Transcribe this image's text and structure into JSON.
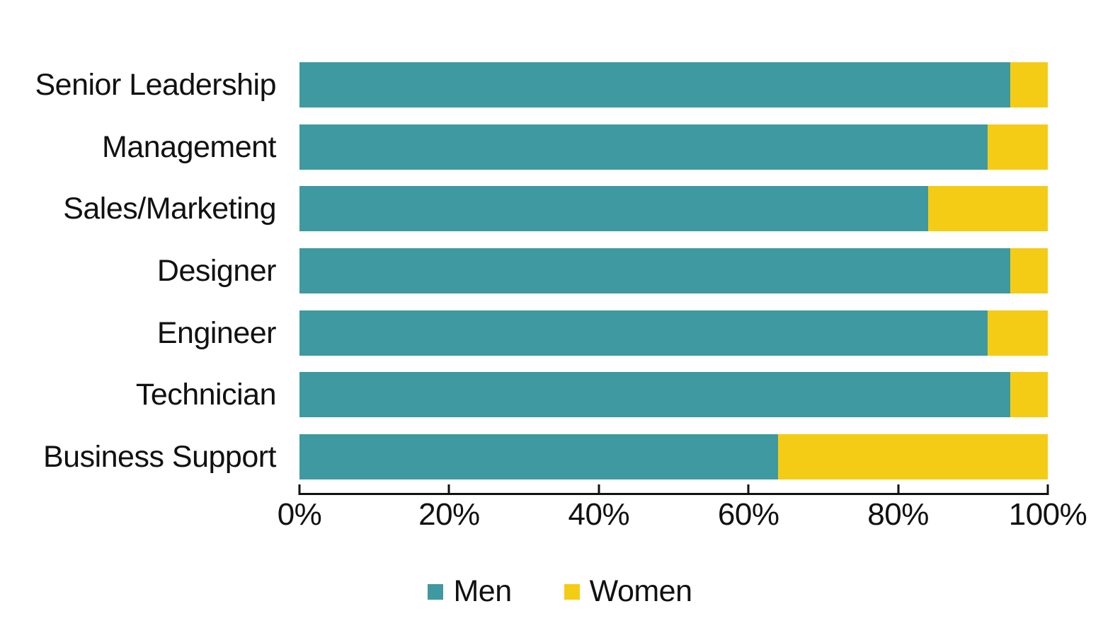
{
  "chart_data": {
    "type": "bar",
    "orientation": "horizontal",
    "stacked": true,
    "unit": "percent",
    "categories": [
      "Senior Leadership",
      "Management",
      "Sales/Marketing",
      "Designer",
      "Engineer",
      "Technician",
      "Business Support"
    ],
    "series": [
      {
        "name": "Men",
        "color": "#3E99A1",
        "values": [
          95,
          92,
          84,
          95,
          92,
          95,
          64
        ]
      },
      {
        "name": "Women",
        "color": "#F5CC15",
        "values": [
          5,
          8,
          16,
          5,
          8,
          5,
          36
        ]
      }
    ],
    "x_axis": {
      "min": 0,
      "max": 100,
      "tick_step": 20,
      "tick_labels": [
        "0%",
        "20%",
        "40%",
        "60%",
        "80%",
        "100%"
      ]
    },
    "legend": {
      "position": "bottom",
      "items": [
        "Men",
        "Women"
      ]
    },
    "grid": false
  },
  "colors": {
    "text": "#111111",
    "axis": "#111111",
    "background": "#FFFFFF"
  }
}
